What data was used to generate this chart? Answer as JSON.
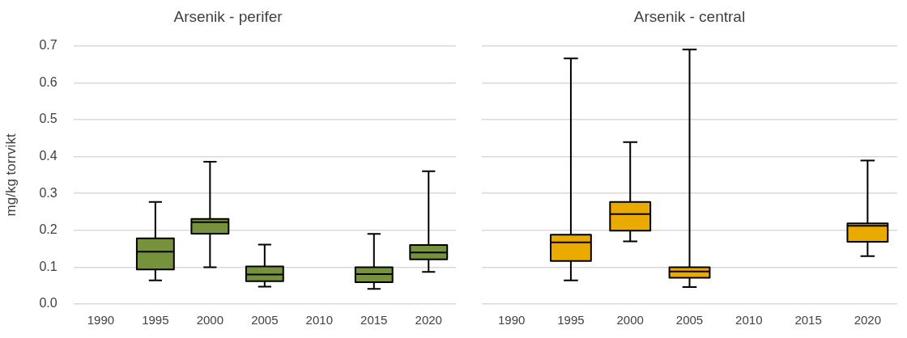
{
  "chart_data": [
    {
      "type": "box",
      "title": "Arsenik - perifer",
      "ylabel": "mg/kg torrvikt",
      "categories": [
        "1990",
        "1995",
        "2000",
        "2005",
        "2010",
        "2015",
        "2020"
      ],
      "ylim": [
        0,
        0.7
      ],
      "yticks": [
        {
          "value": 0,
          "label": "0.0"
        },
        0.1,
        0.2,
        0.3,
        0.4,
        0.5,
        0.6,
        0.7
      ],
      "grid": "y",
      "legend": false,
      "series": [
        {
          "color": "#76923c",
          "boxes": [
            null,
            {
              "low": 0.064,
              "q1": 0.094,
              "median": 0.142,
              "q3": 0.178,
              "high": 0.277
            },
            {
              "low": 0.1,
              "q1": 0.191,
              "median": 0.222,
              "q3": 0.231,
              "high": 0.386
            },
            {
              "low": 0.047,
              "q1": 0.062,
              "median": 0.08,
              "q3": 0.102,
              "high": 0.161
            },
            null,
            {
              "low": 0.041,
              "q1": 0.059,
              "median": 0.081,
              "q3": 0.1,
              "high": 0.19
            },
            {
              "low": 0.087,
              "q1": 0.121,
              "median": 0.14,
              "q3": 0.16,
              "high": 0.36
            }
          ]
        }
      ]
    },
    {
      "type": "box",
      "title": "Arsenik - central",
      "categories": [
        "1990",
        "1995",
        "2000",
        "2005",
        "2010",
        "2015",
        "2020"
      ],
      "ylim": [
        0,
        0.7
      ],
      "yticks": [
        0,
        0.1,
        0.2,
        0.3,
        0.4,
        0.5,
        0.6,
        0.7
      ],
      "grid": "y",
      "legend": false,
      "tick_labels": "x",
      "series": [
        {
          "color": "#eaaa00",
          "boxes": [
            null,
            {
              "low": 0.064,
              "q1": 0.117,
              "median": 0.167,
              "q3": 0.188,
              "high": 0.666
            },
            {
              "low": 0.17,
              "q1": 0.199,
              "median": 0.244,
              "q3": 0.277,
              "high": 0.439
            },
            {
              "low": 0.046,
              "q1": 0.071,
              "median": 0.088,
              "q3": 0.1,
              "high": 0.69
            },
            null,
            null,
            {
              "low": 0.13,
              "q1": 0.169,
              "median": 0.212,
              "q3": 0.219,
              "high": 0.389
            }
          ]
        }
      ]
    }
  ]
}
